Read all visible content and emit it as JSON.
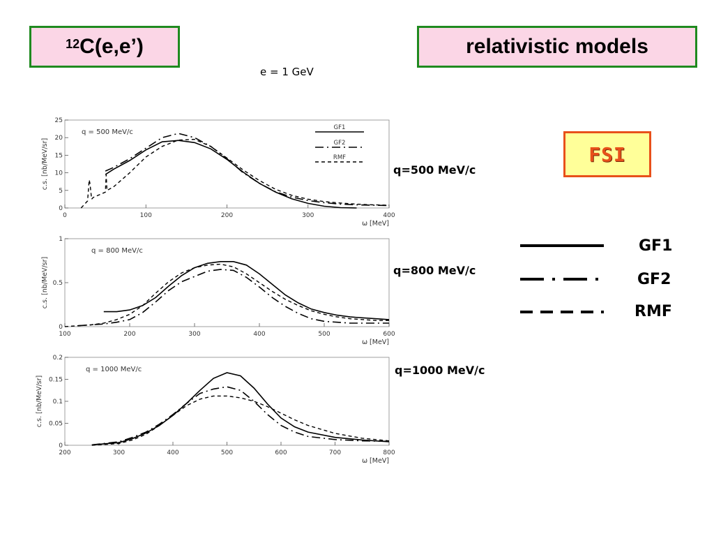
{
  "header": {
    "left_title_sup": "12",
    "left_title": "C(e,e’)",
    "right_title": "relativistic models",
    "energy": "e = 1 GeV"
  },
  "fsi_label": "FSI",
  "q_labels": [
    "q=500 MeV/c",
    "q=800 MeV/c",
    "q=1000 MeV/c"
  ],
  "side_legend": [
    {
      "name": "GF1",
      "style": "solid"
    },
    {
      "name": "GF2",
      "style": "dash-dot"
    },
    {
      "name": "RMF",
      "style": "dashed"
    }
  ],
  "colors": {
    "title_border": "#1f8a1f",
    "title_fill": "#fbd6e6",
    "fsi_border": "#e8501a",
    "fsi_fill": "#ffff99",
    "fsi_text": "#e8501a"
  },
  "chart_data": [
    {
      "type": "line",
      "annotation": "q = 500 MeV/c",
      "xlabel": "ω [MeV]",
      "ylabel": "c.s. [nb/MeV/sr]",
      "xlim": [
        0,
        400
      ],
      "ylim": [
        0,
        25
      ],
      "xticks": [
        0,
        100,
        200,
        300,
        400
      ],
      "yticks": [
        0,
        5,
        10,
        15,
        20,
        25
      ],
      "ytick_labels": [
        "0",
        "5",
        "10",
        "15",
        "20",
        "25"
      ],
      "legend": [
        "GF1",
        "GF2",
        "RMF"
      ],
      "series": [
        {
          "name": "GF1",
          "style": "solid",
          "x": [
            50,
            60,
            80,
            100,
            120,
            140,
            160,
            180,
            200,
            220,
            240,
            260,
            280,
            300,
            320,
            340,
            360
          ],
          "y": [
            9.5,
            11,
            13.5,
            16.5,
            18.8,
            19.2,
            18.6,
            16.8,
            13.8,
            10.2,
            7,
            4.5,
            2.6,
            1.3,
            0.5,
            0.1,
            0
          ]
        },
        {
          "name": "GF2",
          "style": "dash-dot",
          "x": [
            50,
            60,
            80,
            100,
            120,
            140,
            160,
            180,
            200,
            220,
            240,
            260,
            280,
            300,
            320,
            340,
            360,
            380,
            400
          ],
          "y": [
            10.5,
            11.5,
            14,
            17,
            20,
            21.2,
            20,
            17.5,
            14,
            10,
            7,
            4.6,
            3.1,
            2.1,
            1.5,
            1.1,
            0.9,
            0.8,
            0.7
          ]
        },
        {
          "name": "RMF",
          "style": "dashed",
          "x": [
            20,
            28,
            30,
            31,
            33,
            35,
            40,
            50,
            51,
            52,
            60,
            80,
            100,
            120,
            140,
            160,
            180,
            200,
            220,
            240,
            260,
            280,
            300,
            320,
            340,
            360,
            380,
            400
          ],
          "y": [
            0,
            2,
            8,
            7,
            2.5,
            3,
            3.5,
            4.5,
            9.5,
            5,
            6,
            10,
            14.5,
            17.5,
            19.3,
            19.5,
            17.5,
            14.2,
            10.8,
            7.8,
            5.3,
            3.6,
            2.5,
            1.8,
            1.4,
            1.1,
            0.9,
            0.8
          ]
        }
      ]
    },
    {
      "type": "line",
      "annotation": "q = 800 MeV/c",
      "xlabel": "ω [MeV]",
      "ylabel": "c.s. [nb/MeV/sr]",
      "xlim": [
        100,
        600
      ],
      "ylim": [
        0,
        1
      ],
      "xticks": [
        100,
        200,
        300,
        400,
        500,
        600
      ],
      "yticks": [
        0,
        0.5,
        1
      ],
      "ytick_labels": [
        "0",
        "0.5",
        "1"
      ],
      "series": [
        {
          "name": "GF1",
          "style": "solid",
          "x": [
            160,
            180,
            200,
            220,
            240,
            260,
            280,
            300,
            320,
            340,
            360,
            380,
            400,
            420,
            440,
            460,
            480,
            500,
            520,
            540,
            560,
            580,
            600
          ],
          "y": [
            0.17,
            0.17,
            0.19,
            0.24,
            0.33,
            0.46,
            0.58,
            0.67,
            0.72,
            0.74,
            0.74,
            0.7,
            0.6,
            0.48,
            0.36,
            0.27,
            0.2,
            0.16,
            0.13,
            0.11,
            0.1,
            0.09,
            0.08
          ]
        },
        {
          "name": "GF2",
          "style": "dash-dot",
          "x": [
            120,
            140,
            160,
            180,
            200,
            220,
            240,
            260,
            280,
            300,
            320,
            340,
            360,
            380,
            400,
            420,
            440,
            460,
            480,
            500,
            520,
            540,
            560,
            580,
            600
          ],
          "y": [
            0.01,
            0.02,
            0.03,
            0.05,
            0.08,
            0.16,
            0.28,
            0.41,
            0.51,
            0.57,
            0.63,
            0.65,
            0.64,
            0.56,
            0.45,
            0.33,
            0.23,
            0.15,
            0.09,
            0.06,
            0.05,
            0.04,
            0.04,
            0.04,
            0.04
          ]
        },
        {
          "name": "RMF",
          "style": "dashed",
          "x": [
            100,
            120,
            140,
            160,
            180,
            200,
            220,
            240,
            260,
            280,
            300,
            320,
            340,
            360,
            380,
            400,
            420,
            440,
            460,
            480,
            500,
            520,
            540,
            560,
            580,
            600
          ],
          "y": [
            0,
            0.01,
            0.02,
            0.04,
            0.08,
            0.14,
            0.24,
            0.38,
            0.51,
            0.61,
            0.67,
            0.7,
            0.71,
            0.68,
            0.6,
            0.5,
            0.4,
            0.31,
            0.24,
            0.18,
            0.14,
            0.11,
            0.09,
            0.08,
            0.07,
            0.07
          ]
        }
      ]
    },
    {
      "type": "line",
      "annotation": "q = 1000 MeV/c",
      "xlabel": "ω [MeV]",
      "ylabel": "c.s. [nb/MeV/sr]",
      "xlim": [
        200,
        800
      ],
      "ylim": [
        0,
        0.2
      ],
      "xticks": [
        200,
        300,
        400,
        500,
        600,
        700,
        800
      ],
      "yticks": [
        0,
        0.05,
        0.1,
        0.15,
        0.2
      ],
      "ytick_labels": [
        "0",
        "0.05",
        "0.1",
        "0.15",
        "0.2"
      ],
      "series": [
        {
          "name": "GF1",
          "style": "solid",
          "x": [
            250,
            300,
            325,
            350,
            375,
            400,
            425,
            450,
            475,
            500,
            525,
            550,
            575,
            600,
            625,
            650,
            700,
            750,
            800
          ],
          "y": [
            0.001,
            0.006,
            0.015,
            0.028,
            0.045,
            0.068,
            0.095,
            0.125,
            0.152,
            0.165,
            0.158,
            0.13,
            0.094,
            0.062,
            0.042,
            0.03,
            0.018,
            0.012,
            0.008
          ]
        },
        {
          "name": "GF2",
          "style": "dash-dot",
          "x": [
            250,
            300,
            325,
            350,
            375,
            400,
            425,
            450,
            475,
            500,
            525,
            550,
            575,
            600,
            625,
            650,
            700,
            750,
            800
          ],
          "y": [
            0.001,
            0.008,
            0.018,
            0.03,
            0.048,
            0.07,
            0.095,
            0.118,
            0.128,
            0.133,
            0.125,
            0.1,
            0.07,
            0.045,
            0.03,
            0.02,
            0.013,
            0.01,
            0.009
          ]
        },
        {
          "name": "RMF",
          "style": "dashed",
          "x": [
            250,
            300,
            325,
            350,
            375,
            400,
            425,
            450,
            475,
            500,
            525,
            550,
            575,
            600,
            625,
            650,
            700,
            750,
            800
          ],
          "y": [
            0,
            0.004,
            0.012,
            0.025,
            0.045,
            0.068,
            0.09,
            0.105,
            0.112,
            0.112,
            0.108,
            0.1,
            0.088,
            0.073,
            0.058,
            0.045,
            0.027,
            0.016,
            0.01
          ]
        }
      ]
    }
  ]
}
